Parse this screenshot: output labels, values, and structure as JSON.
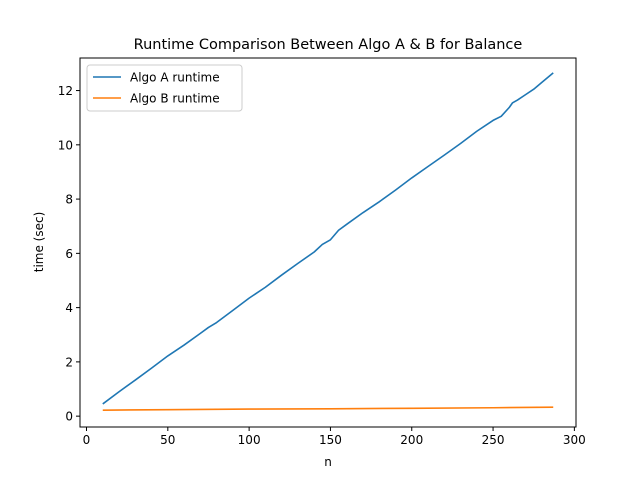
{
  "chart_data": {
    "type": "line",
    "title": "Runtime Comparison Between Algo A & B for Balance",
    "xlabel": "n",
    "ylabel": "time (sec)",
    "xlim": [
      -4,
      301
    ],
    "ylim": [
      -0.4,
      13.2
    ],
    "xticks": [
      0,
      50,
      100,
      150,
      200,
      250,
      300
    ],
    "yticks": [
      0,
      2,
      4,
      6,
      8,
      10,
      12
    ],
    "grid": false,
    "legend_position": "upper left",
    "series": [
      {
        "name": "Algo A runtime",
        "color": "#1f77b4",
        "x": [
          10,
          20,
          30,
          40,
          50,
          60,
          70,
          75,
          80,
          90,
          100,
          110,
          120,
          130,
          140,
          145,
          150,
          155,
          160,
          170,
          180,
          190,
          200,
          210,
          220,
          230,
          240,
          250,
          255,
          260,
          262,
          265,
          270,
          275,
          280,
          287
        ],
        "y": [
          0.45,
          0.9,
          1.33,
          1.77,
          2.22,
          2.62,
          3.05,
          3.27,
          3.45,
          3.9,
          4.35,
          4.75,
          5.2,
          5.63,
          6.05,
          6.33,
          6.5,
          6.85,
          7.07,
          7.5,
          7.9,
          8.33,
          8.78,
          9.2,
          9.62,
          10.05,
          10.5,
          10.9,
          11.05,
          11.38,
          11.55,
          11.65,
          11.85,
          12.05,
          12.3,
          12.65
        ]
      },
      {
        "name": "Algo B runtime",
        "color": "#ff7f0e",
        "x": [
          10,
          50,
          100,
          150,
          200,
          250,
          287
        ],
        "y": [
          0.22,
          0.24,
          0.26,
          0.27,
          0.29,
          0.31,
          0.33
        ]
      }
    ]
  }
}
